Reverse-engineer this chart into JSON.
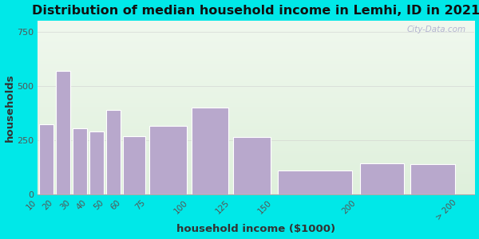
{
  "title": "Distribution of median household income in Lemhi, ID in 2021",
  "xlabel": "household income ($1000)",
  "ylabel": "households",
  "bar_lefts": [
    10,
    20,
    30,
    40,
    50,
    60,
    75,
    100,
    125,
    150,
    200,
    230
  ],
  "bar_widths": [
    10,
    10,
    10,
    10,
    10,
    15,
    25,
    25,
    25,
    50,
    30,
    30
  ],
  "bar_values": [
    325,
    570,
    305,
    290,
    390,
    270,
    315,
    400,
    265,
    110,
    145,
    140
  ],
  "bar_color": "#b8a8cc",
  "bar_edgecolor": "#ffffff",
  "xtick_positions": [
    10,
    20,
    30,
    40,
    50,
    60,
    75,
    100,
    125,
    150,
    200,
    260
  ],
  "xtick_labels": [
    "10",
    "20",
    "30",
    "40",
    "50",
    "60",
    "75",
    "100",
    "125",
    "150",
    "200",
    "> 200"
  ],
  "ylim": [
    0,
    800
  ],
  "yticks": [
    0,
    250,
    500,
    750
  ],
  "xlim": [
    10,
    270
  ],
  "bg_outer": "#00e8e8",
  "bg_inner": "#eaf5e8",
  "watermark": "City-Data.com",
  "title_fontsize": 11.5,
  "axis_label_fontsize": 9.5
}
